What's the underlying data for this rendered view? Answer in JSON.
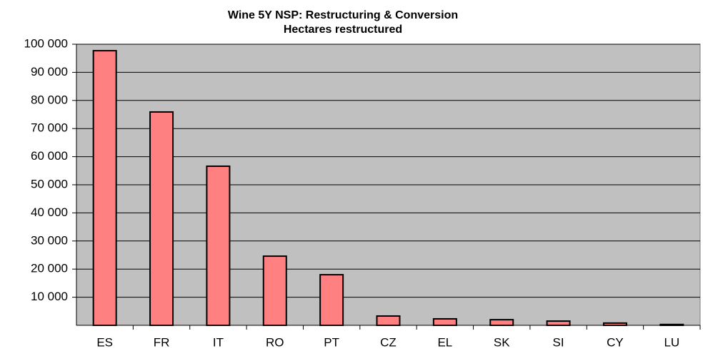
{
  "chart_data": {
    "type": "bar",
    "title": "Wine 5Y NSP: Restructuring & Conversion",
    "subtitle": "Hectares restructured",
    "categories": [
      "ES",
      "FR",
      "IT",
      "RO",
      "PT",
      "CZ",
      "EL",
      "SK",
      "SI",
      "CY",
      "LU"
    ],
    "values": [
      97700,
      75900,
      56600,
      24600,
      18000,
      3300,
      2300,
      2000,
      1500,
      800,
      300
    ],
    "color": "#ff8080",
    "ylim": [
      0,
      100000
    ],
    "yticks": [
      {
        "value": 10000,
        "label": "10 000"
      },
      {
        "value": 20000,
        "label": "20 000"
      },
      {
        "value": 30000,
        "label": "30 000"
      },
      {
        "value": 40000,
        "label": "40 000"
      },
      {
        "value": 50000,
        "label": "50 000"
      },
      {
        "value": 60000,
        "label": "60 000"
      },
      {
        "value": 70000,
        "label": "70 000"
      },
      {
        "value": 80000,
        "label": "80 000"
      },
      {
        "value": 90000,
        "label": "90 000"
      },
      {
        "value": 100000,
        "label": "100 000"
      }
    ],
    "grid": true
  }
}
